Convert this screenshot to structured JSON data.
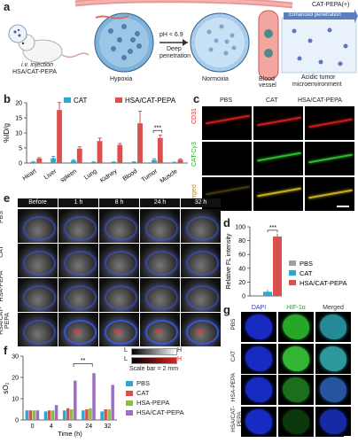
{
  "figure": {
    "panel_letters": [
      "a",
      "b",
      "c",
      "d",
      "e",
      "f",
      "g"
    ]
  },
  "panel_a": {
    "injection_line1": "i.v. injection",
    "injection_line2": "HSA/CAT-PEPA",
    "hypoxia": "Hypoxia",
    "ph_text": "pH < 6.9",
    "deep_pen_line1": "Deep",
    "deep_pen_line2": "penetration",
    "normoxia": "Normoxia",
    "cat_pepa": "CAT-PEPA(+)",
    "enhanced_pen": "Enhanced penetration",
    "blood_line1": "Blood",
    "blood_line2": "vessel",
    "acidic_line1": "Acidic tumor",
    "acidic_line2": "microenvironment"
  },
  "panel_b": {
    "chart_data": {
      "type": "bar",
      "categories": [
        "Heart",
        "Liver",
        "spleen",
        "Lung",
        "Kidney",
        "Blood",
        "Tumor",
        "Muscle"
      ],
      "ylabel": "%ID/g",
      "ylim": [
        0,
        20
      ],
      "yticks": [
        "0",
        "5",
        "10",
        "15",
        "20"
      ],
      "series": [
        {
          "name": "CAT",
          "color": "#2aa7d3",
          "values": [
            0.3,
            1.6,
            0.8,
            0.3,
            0.3,
            0.3,
            1.0,
            0.2
          ],
          "errors": [
            0.2,
            0.6,
            0.3,
            0.1,
            0.1,
            0.1,
            0.4,
            0.1
          ]
        },
        {
          "name": "HSA/CAT-PEPA",
          "color": "#d9504f",
          "values": [
            1.5,
            17.6,
            4.8,
            7.3,
            6.0,
            13.2,
            8.3,
            1.1
          ],
          "errors": [
            0.3,
            2.5,
            0.6,
            1.0,
            0.5,
            4.0,
            1.0,
            0.3
          ]
        }
      ],
      "significance": "***"
    }
  },
  "panel_c": {
    "col_labels": [
      "PBS",
      "CAT",
      "HSA/CAT-PEPA"
    ],
    "row_labels": [
      "CD31",
      "CAT-Cy3",
      "Merged"
    ]
  },
  "panel_d": {
    "chart_data": {
      "type": "bar",
      "categories": [
        "PBS",
        "CAT",
        "HSA/CAT-PEPA"
      ],
      "ylabel": "Relative FL intensity",
      "ylim": [
        0,
        100
      ],
      "yticks": [
        "0",
        "20",
        "40",
        "60",
        "80",
        "100"
      ],
      "values": [
        0.2,
        6.0,
        86.0
      ],
      "errors": [
        0.1,
        3.0,
        4.0
      ],
      "colors": [
        "#9e9e9e",
        "#2aa7d3",
        "#d9504f"
      ],
      "significance": "***"
    }
  },
  "panel_e": {
    "col_labels": [
      "Before",
      "1 h",
      "8 h",
      "24 h",
      "32 h"
    ],
    "row_labels": [
      "PBS",
      "CAT",
      "HSA-PEPA",
      "HSA/CAT-PEPA"
    ],
    "scale_L": "L",
    "scale_H": "H",
    "scale_bar": "Scale bar = 2 mm"
  },
  "panel_f": {
    "chart_data": {
      "type": "bar",
      "categories": [
        "0",
        "4",
        "8",
        "24",
        "32"
      ],
      "xlabel": "Time (h)",
      "ylabel": "sO₂",
      "ylim": [
        0,
        30
      ],
      "yticks": [
        "0",
        "10",
        "20",
        "30"
      ],
      "series": [
        {
          "name": "PBS",
          "color": "#2aa7d3",
          "values": [
            4.5,
            4.0,
            4.5,
            4.5,
            4.0
          ]
        },
        {
          "name": "CAT",
          "color": "#d9504f",
          "values": [
            4.5,
            4.5,
            5.5,
            5.0,
            5.0
          ]
        },
        {
          "name": "HSA-PEPA",
          "color": "#8fbc3f",
          "values": [
            4.5,
            4.5,
            5.0,
            5.5,
            5.0
          ]
        },
        {
          "name": "HSA/CAT-PEPA",
          "color": "#9b6fc6",
          "values": [
            4.5,
            7.0,
            18.5,
            22.0,
            16.5
          ]
        }
      ],
      "significance": "**"
    }
  },
  "panel_g": {
    "col_labels": [
      "DAPI",
      "HIF-1α",
      "Merged"
    ],
    "row_labels": [
      "PBS",
      "CAT",
      "HSA-PEPA",
      "HSA/CAT-PEPA"
    ]
  }
}
